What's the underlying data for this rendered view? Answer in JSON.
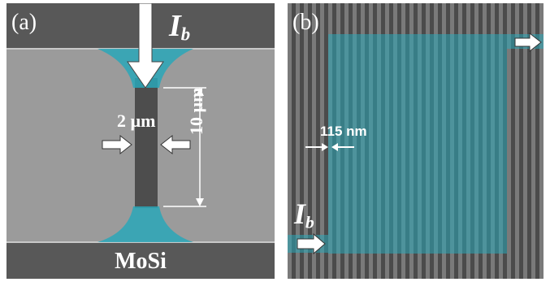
{
  "panel_a": {
    "letter": "(a)",
    "current": {
      "symbol": "I",
      "subscript": "b"
    },
    "width_label": "2 µm",
    "length_label": "10 µm",
    "material": "MoSi"
  },
  "panel_b": {
    "letter": "(b)",
    "current": {
      "symbol": "I",
      "subscript": "b"
    },
    "pitch_label": "115 nm"
  },
  "colors": {
    "highlight": "#2aa7b8",
    "film": "#9a9a9a",
    "substrate": "#505050",
    "arrow": "#ffffff"
  }
}
